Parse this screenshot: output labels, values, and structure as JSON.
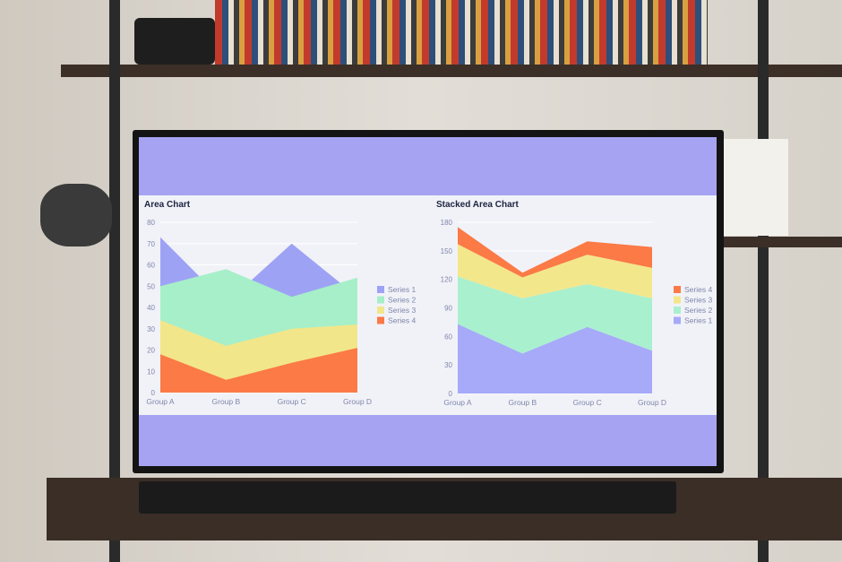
{
  "chart_data": [
    {
      "type": "area",
      "title": "Area Chart",
      "categories": [
        "Group A",
        "Group B",
        "Group C",
        "Group D"
      ],
      "ylim": [
        0,
        80
      ],
      "yticks": [
        0,
        10,
        20,
        30,
        40,
        50,
        60,
        70,
        80
      ],
      "stacked": false,
      "legend": "right",
      "series": [
        {
          "name": "Series 1",
          "color": "#9ea2f5",
          "values": [
            73,
            42,
            70,
            45
          ]
        },
        {
          "name": "Series 2",
          "color": "#a6efc9",
          "values": [
            50,
            58,
            45,
            54
          ]
        },
        {
          "name": "Series 3",
          "color": "#f2e68a",
          "values": [
            34,
            22,
            30,
            32
          ]
        },
        {
          "name": "Series 4",
          "color": "#fb7a46",
          "values": [
            18,
            6,
            14,
            21
          ]
        }
      ]
    },
    {
      "type": "area",
      "title": "Stacked Area Chart",
      "categories": [
        "Group A",
        "Group B",
        "Group C",
        "Group D"
      ],
      "ylim": [
        0,
        180
      ],
      "yticks": [
        0,
        30,
        60,
        90,
        120,
        150,
        180
      ],
      "stacked": true,
      "legend": "right",
      "series": [
        {
          "name": "Series 1",
          "color": "#a6aaf8",
          "values": [
            73,
            42,
            70,
            45
          ]
        },
        {
          "name": "Series 2",
          "color": "#a9f0cf",
          "values": [
            50,
            58,
            45,
            55
          ]
        },
        {
          "name": "Series 3",
          "color": "#f3e78c",
          "values": [
            34,
            22,
            31,
            32
          ]
        },
        {
          "name": "Series 4",
          "color": "#fb7a46",
          "values": [
            18,
            5,
            14,
            22
          ]
        }
      ]
    }
  ]
}
